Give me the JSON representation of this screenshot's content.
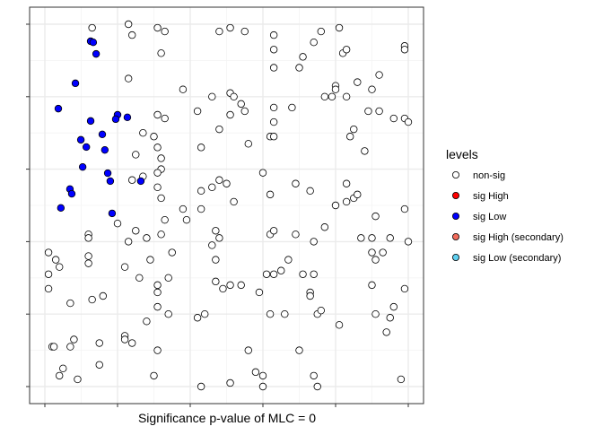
{
  "chart_data": {
    "type": "scatter",
    "title": "",
    "xlabel": "Significance p-value of MLC = 0",
    "ylabel": "",
    "xlim": [
      -0.042,
      1.042
    ],
    "ylim": [
      -0.047,
      1.047
    ],
    "xticks": [
      0,
      0.2,
      0.4,
      0.6,
      0.8,
      1.0
    ],
    "yticks": [
      0,
      0.2,
      0.4,
      0.6,
      0.8,
      1.0
    ],
    "tick_labels_shown": false,
    "grid": true,
    "legend": {
      "title": "levels",
      "placement": "right",
      "entries": [
        {
          "label": "non-sig",
          "color": "#FFFFFF"
        },
        {
          "label": "sig High",
          "color": "#FF0000"
        },
        {
          "label": "sig Low",
          "color": "#0000FF"
        },
        {
          "label": "sig High (secondary)",
          "color": "#F26B5B"
        },
        {
          "label": "sig Low (secondary)",
          "color": "#5FD0F0"
        }
      ]
    },
    "series": [
      {
        "name": "non-sig",
        "color": "#FFFFFF",
        "points": [
          [
            0.13,
            0.99
          ],
          [
            0.23,
            1.0
          ],
          [
            0.24,
            0.97
          ],
          [
            0.31,
            0.99
          ],
          [
            0.33,
            0.98
          ],
          [
            0.32,
            0.92
          ],
          [
            0.48,
            0.98
          ],
          [
            0.51,
            0.99
          ],
          [
            0.55,
            0.98
          ],
          [
            0.63,
            0.97
          ],
          [
            0.63,
            0.93
          ],
          [
            0.63,
            0.88
          ],
          [
            0.7,
            0.88
          ],
          [
            0.71,
            0.91
          ],
          [
            0.74,
            0.95
          ],
          [
            0.76,
            0.98
          ],
          [
            0.81,
            0.99
          ],
          [
            0.82,
            0.92
          ],
          [
            0.83,
            0.93
          ],
          [
            0.92,
            0.86
          ],
          [
            0.99,
            0.94
          ],
          [
            0.99,
            0.93
          ],
          [
            0.23,
            0.85
          ],
          [
            0.38,
            0.82
          ],
          [
            0.46,
            0.8
          ],
          [
            0.51,
            0.81
          ],
          [
            0.52,
            0.8
          ],
          [
            0.54,
            0.78
          ],
          [
            0.51,
            0.75
          ],
          [
            0.55,
            0.76
          ],
          [
            0.42,
            0.76
          ],
          [
            0.63,
            0.77
          ],
          [
            0.63,
            0.73
          ],
          [
            0.68,
            0.77
          ],
          [
            0.8,
            0.83
          ],
          [
            0.8,
            0.82
          ],
          [
            0.83,
            0.8
          ],
          [
            0.79,
            0.8
          ],
          [
            0.77,
            0.8
          ],
          [
            0.9,
            0.82
          ],
          [
            0.86,
            0.84
          ],
          [
            0.89,
            0.76
          ],
          [
            0.92,
            0.76
          ],
          [
            0.96,
            0.74
          ],
          [
            0.99,
            0.74
          ],
          [
            1.0,
            0.73
          ],
          [
            0.84,
            0.69
          ],
          [
            0.85,
            0.71
          ],
          [
            0.88,
            0.65
          ],
          [
            0.62,
            0.69
          ],
          [
            0.63,
            0.69
          ],
          [
            0.56,
            0.67
          ],
          [
            0.43,
            0.66
          ],
          [
            0.48,
            0.71
          ],
          [
            0.31,
            0.75
          ],
          [
            0.33,
            0.74
          ],
          [
            0.3,
            0.69
          ],
          [
            0.27,
            0.7
          ],
          [
            0.31,
            0.66
          ],
          [
            0.32,
            0.63
          ],
          [
            0.25,
            0.64
          ],
          [
            0.32,
            0.6
          ],
          [
            0.31,
            0.59
          ],
          [
            0.27,
            0.58
          ],
          [
            0.24,
            0.57
          ],
          [
            0.6,
            0.59
          ],
          [
            0.48,
            0.57
          ],
          [
            0.5,
            0.56
          ],
          [
            0.46,
            0.55
          ],
          [
            0.52,
            0.51
          ],
          [
            0.43,
            0.49
          ],
          [
            0.39,
            0.46
          ],
          [
            0.38,
            0.49
          ],
          [
            0.32,
            0.52
          ],
          [
            0.31,
            0.55
          ],
          [
            0.43,
            0.54
          ],
          [
            0.62,
            0.53
          ],
          [
            0.69,
            0.56
          ],
          [
            0.73,
            0.54
          ],
          [
            0.83,
            0.56
          ],
          [
            0.8,
            0.5
          ],
          [
            0.83,
            0.51
          ],
          [
            0.85,
            0.52
          ],
          [
            0.86,
            0.53
          ],
          [
            0.91,
            0.47
          ],
          [
            0.99,
            0.49
          ],
          [
            0.2,
            0.45
          ],
          [
            0.25,
            0.43
          ],
          [
            0.23,
            0.4
          ],
          [
            0.28,
            0.41
          ],
          [
            0.32,
            0.42
          ],
          [
            0.33,
            0.46
          ],
          [
            0.47,
            0.43
          ],
          [
            0.48,
            0.41
          ],
          [
            0.46,
            0.39
          ],
          [
            0.62,
            0.42
          ],
          [
            0.63,
            0.43
          ],
          [
            0.69,
            0.42
          ],
          [
            0.74,
            0.4
          ],
          [
            0.77,
            0.44
          ],
          [
            0.87,
            0.41
          ],
          [
            0.9,
            0.41
          ],
          [
            0.95,
            0.41
          ],
          [
            1.0,
            0.4
          ],
          [
            0.9,
            0.37
          ],
          [
            0.91,
            0.35
          ],
          [
            0.93,
            0.37
          ],
          [
            0.12,
            0.42
          ],
          [
            0.12,
            0.41
          ],
          [
            0.01,
            0.37
          ],
          [
            0.03,
            0.35
          ],
          [
            0.04,
            0.33
          ],
          [
            0.12,
            0.36
          ],
          [
            0.12,
            0.34
          ],
          [
            0.01,
            0.31
          ],
          [
            0.01,
            0.27
          ],
          [
            0.07,
            0.23
          ],
          [
            0.13,
            0.24
          ],
          [
            0.16,
            0.25
          ],
          [
            0.22,
            0.33
          ],
          [
            0.29,
            0.35
          ],
          [
            0.26,
            0.3
          ],
          [
            0.35,
            0.37
          ],
          [
            0.31,
            0.28
          ],
          [
            0.31,
            0.26
          ],
          [
            0.34,
            0.3
          ],
          [
            0.47,
            0.35
          ],
          [
            0.47,
            0.29
          ],
          [
            0.49,
            0.27
          ],
          [
            0.51,
            0.28
          ],
          [
            0.54,
            0.28
          ],
          [
            0.59,
            0.26
          ],
          [
            0.61,
            0.31
          ],
          [
            0.63,
            0.31
          ],
          [
            0.65,
            0.32
          ],
          [
            0.67,
            0.35
          ],
          [
            0.71,
            0.31
          ],
          [
            0.74,
            0.31
          ],
          [
            0.73,
            0.26
          ],
          [
            0.73,
            0.25
          ],
          [
            0.9,
            0.28
          ],
          [
            0.99,
            0.27
          ],
          [
            0.31,
            0.22
          ],
          [
            0.34,
            0.2
          ],
          [
            0.28,
            0.18
          ],
          [
            0.22,
            0.14
          ],
          [
            0.22,
            0.13
          ],
          [
            0.24,
            0.12
          ],
          [
            0.42,
            0.19
          ],
          [
            0.44,
            0.2
          ],
          [
            0.62,
            0.2
          ],
          [
            0.66,
            0.2
          ],
          [
            0.75,
            0.2
          ],
          [
            0.76,
            0.21
          ],
          [
            0.91,
            0.2
          ],
          [
            0.95,
            0.19
          ],
          [
            0.96,
            0.22
          ],
          [
            0.94,
            0.15
          ],
          [
            0.81,
            0.17
          ],
          [
            0.08,
            0.13
          ],
          [
            0.07,
            0.11
          ],
          [
            0.02,
            0.11
          ],
          [
            0.025,
            0.11
          ],
          [
            0.15,
            0.12
          ],
          [
            0.31,
            0.1
          ],
          [
            0.56,
            0.1
          ],
          [
            0.7,
            0.1
          ],
          [
            0.05,
            0.05
          ],
          [
            0.04,
            0.03
          ],
          [
            0.09,
            0.02
          ],
          [
            0.15,
            0.06
          ],
          [
            0.3,
            0.03
          ],
          [
            0.43,
            0.0
          ],
          [
            0.51,
            0.01
          ],
          [
            0.58,
            0.04
          ],
          [
            0.6,
            0.03
          ],
          [
            0.6,
            0.0
          ],
          [
            0.74,
            0.03
          ],
          [
            0.75,
            0.0
          ],
          [
            0.98,
            0.02
          ]
        ]
      },
      {
        "name": "sig High",
        "color": "#FF0000",
        "points": []
      },
      {
        "name": "sig Low",
        "color": "#0000FF",
        "points": [
          [
            0.126,
            0.953
          ],
          [
            0.133,
            0.95
          ],
          [
            0.141,
            0.918
          ],
          [
            0.084,
            0.837
          ],
          [
            0.037,
            0.767
          ],
          [
            0.2,
            0.75
          ],
          [
            0.195,
            0.738
          ],
          [
            0.227,
            0.743
          ],
          [
            0.126,
            0.733
          ],
          [
            0.158,
            0.696
          ],
          [
            0.099,
            0.681
          ],
          [
            0.114,
            0.661
          ],
          [
            0.165,
            0.653
          ],
          [
            0.104,
            0.606
          ],
          [
            0.173,
            0.589
          ],
          [
            0.18,
            0.567
          ],
          [
            0.264,
            0.567
          ],
          [
            0.069,
            0.545
          ],
          [
            0.074,
            0.532
          ],
          [
            0.044,
            0.493
          ],
          [
            0.185,
            0.478
          ]
        ]
      },
      {
        "name": "sig High (secondary)",
        "color": "#F26B5B",
        "points": []
      },
      {
        "name": "sig Low (secondary)",
        "color": "#5FD0F0",
        "points": []
      }
    ]
  }
}
